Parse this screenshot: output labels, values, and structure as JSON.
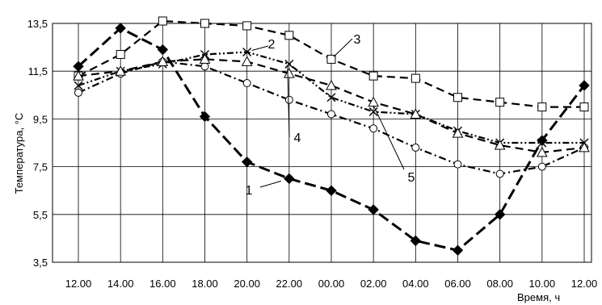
{
  "chart_data": {
    "type": "line",
    "ylabel": "Температура, °С",
    "xlabel": "Время, ч",
    "ylim": [
      3.5,
      13.5
    ],
    "yticks": [
      "3,5",
      "5,5",
      "7,5",
      "9,5",
      "11,5",
      "13,5"
    ],
    "categories": [
      "12.00",
      "14.00",
      "16.00",
      "18.00",
      "20.00",
      "22.00",
      "00.00",
      "02.00",
      "04.00",
      "06.00",
      "08.00",
      "10.00",
      "12.00"
    ],
    "grid": true,
    "series": [
      {
        "name": "1",
        "marker": "diamond-filled",
        "dash": "long-dash",
        "values": [
          11.7,
          13.3,
          12.4,
          9.6,
          7.7,
          7.0,
          6.5,
          5.7,
          4.4,
          4.0,
          5.5,
          8.6,
          10.9
        ]
      },
      {
        "name": "2",
        "marker": "x",
        "dash": "dash-dot-dot",
        "values": [
          10.9,
          11.5,
          11.8,
          12.2,
          12.3,
          11.8,
          10.4,
          9.8,
          9.7,
          9.0,
          8.5,
          8.5,
          8.5
        ]
      },
      {
        "name": "3",
        "marker": "square",
        "dash": "dash",
        "values": [
          11.3,
          12.2,
          13.6,
          13.5,
          13.4,
          13.0,
          12.0,
          11.3,
          11.2,
          10.4,
          10.2,
          10.0,
          10.0
        ]
      },
      {
        "name": "4",
        "marker": "circle",
        "dash": "dash-dot",
        "values": [
          10.6,
          11.4,
          11.9,
          11.7,
          11.0,
          10.3,
          9.7,
          9.1,
          8.3,
          7.6,
          7.2,
          7.5,
          8.3
        ]
      },
      {
        "name": "5",
        "marker": "triangle",
        "dash": "dash",
        "values": [
          11.3,
          11.5,
          11.9,
          12.0,
          11.9,
          11.4,
          10.9,
          10.2,
          9.7,
          8.9,
          8.4,
          8.1,
          8.3
        ]
      }
    ],
    "callouts": [
      "1",
      "2",
      "3",
      "4",
      "5"
    ]
  },
  "colors": {
    "line": "#000000",
    "grid": "#000000",
    "background": "#ffffff"
  }
}
